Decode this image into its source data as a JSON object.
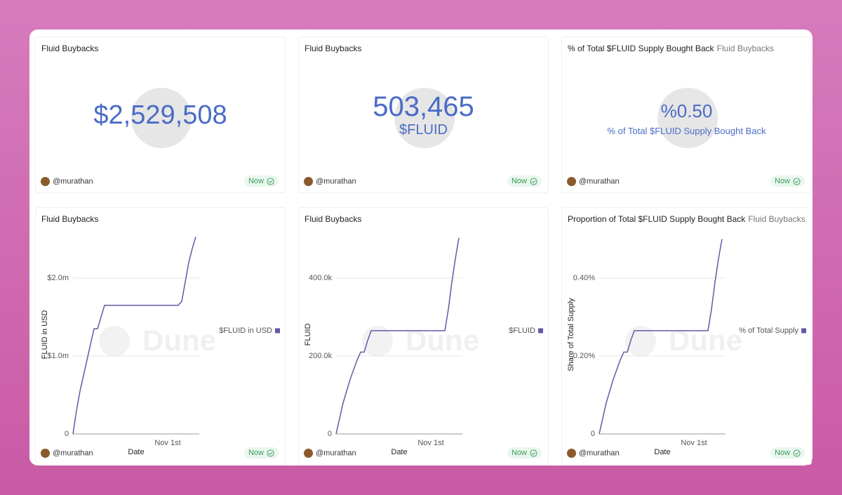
{
  "widgets": [
    {
      "title": "Fluid Buybacks",
      "counter": "$2,529,508"
    },
    {
      "title": "Fluid Buybacks",
      "counter": "503,465",
      "counter_label": "$FLUID"
    },
    {
      "title": "% of Total $FLUID Supply Bought Back",
      "subtitle": "Fluid Buybacks",
      "counter": "%0.50",
      "counter_label": "% of Total $FLUID Supply Bought Back"
    }
  ],
  "footer": {
    "author": "@murathan",
    "status": "Now"
  },
  "watermark": "Dune",
  "chart_data": [
    {
      "type": "line",
      "title": "Fluid Buybacks",
      "x_label": "Date",
      "y_label": "FLUID in USD",
      "categories": [
        null,
        null,
        null,
        null,
        null,
        null,
        null,
        null,
        null,
        null,
        null,
        null,
        null,
        null,
        null,
        null,
        null,
        null,
        null,
        null,
        null,
        null,
        null,
        null,
        null,
        null,
        null,
        "Nov 1st",
        null,
        null,
        null,
        null,
        null,
        null,
        null,
        null
      ],
      "series": [
        {
          "name": "$FLUID in USD",
          "color": "#5e5ca6",
          "values": [
            0,
            300000,
            550000,
            750000,
            950000,
            1150000,
            1350000,
            1350000,
            1500000,
            1650000,
            1650000,
            1650000,
            1650000,
            1650000,
            1650000,
            1650000,
            1650000,
            1650000,
            1650000,
            1650000,
            1650000,
            1650000,
            1650000,
            1650000,
            1650000,
            1650000,
            1650000,
            1650000,
            1650000,
            1650000,
            1650000,
            1700000,
            1950000,
            2200000,
            2380000,
            2530000
          ]
        }
      ],
      "ylim": [
        0,
        2550000
      ],
      "yticks": [
        0,
        {
          "value": 1000000,
          "label": "$1.0m"
        },
        {
          "value": 2000000,
          "label": "$2.0m"
        }
      ],
      "grid": true,
      "legend": "right"
    },
    {
      "type": "line",
      "title": "Fluid Buybacks",
      "x_label": "Date",
      "y_label": "FLUID",
      "categories": [
        null,
        null,
        null,
        null,
        null,
        null,
        null,
        null,
        null,
        null,
        null,
        null,
        null,
        null,
        null,
        null,
        null,
        null,
        null,
        null,
        null,
        null,
        null,
        null,
        null,
        null,
        null,
        "Nov 1st",
        null,
        null,
        null,
        null,
        null,
        null,
        null,
        null
      ],
      "series": [
        {
          "name": "$FLUID",
          "color": "#5e5ca6",
          "values": [
            0,
            40000,
            80000,
            110000,
            140000,
            165000,
            190000,
            210000,
            210000,
            240000,
            265000,
            265000,
            265000,
            265000,
            265000,
            265000,
            265000,
            265000,
            265000,
            265000,
            265000,
            265000,
            265000,
            265000,
            265000,
            265000,
            265000,
            265000,
            265000,
            265000,
            265000,
            265000,
            320000,
            390000,
            450000,
            503000
          ]
        }
      ],
      "ylim": [
        0,
        510000
      ],
      "yticks": [
        0,
        {
          "value": 200000,
          "label": "200.0k"
        },
        {
          "value": 400000,
          "label": "400.0k"
        }
      ],
      "grid": true,
      "legend": "right"
    },
    {
      "type": "line",
      "title": "Proportion of Total $FLUID Supply Bought Back",
      "subtitle": "Fluid Buybacks",
      "x_label": "Date",
      "y_label": "Share of Total Supply",
      "categories": [
        null,
        null,
        null,
        null,
        null,
        null,
        null,
        null,
        null,
        null,
        null,
        null,
        null,
        null,
        null,
        null,
        null,
        null,
        null,
        null,
        null,
        null,
        null,
        null,
        null,
        null,
        null,
        "Nov 1st",
        null,
        null,
        null,
        null,
        null,
        null,
        null,
        null
      ],
      "series": [
        {
          "name": "% of Total Supply",
          "color": "#5e5ca6",
          "values": [
            0,
            0.04,
            0.08,
            0.11,
            0.14,
            0.165,
            0.19,
            0.21,
            0.21,
            0.24,
            0.265,
            0.265,
            0.265,
            0.265,
            0.265,
            0.265,
            0.265,
            0.265,
            0.265,
            0.265,
            0.265,
            0.265,
            0.265,
            0.265,
            0.265,
            0.265,
            0.265,
            0.265,
            0.265,
            0.265,
            0.265,
            0.265,
            0.32,
            0.39,
            0.45,
            0.5
          ]
        }
      ],
      "ylim": [
        0,
        0.51
      ],
      "yticks": [
        0,
        {
          "value": 0.2,
          "label": "0.20%"
        },
        {
          "value": 0.4,
          "label": "0.40%"
        }
      ],
      "grid": true,
      "legend": "right"
    }
  ]
}
